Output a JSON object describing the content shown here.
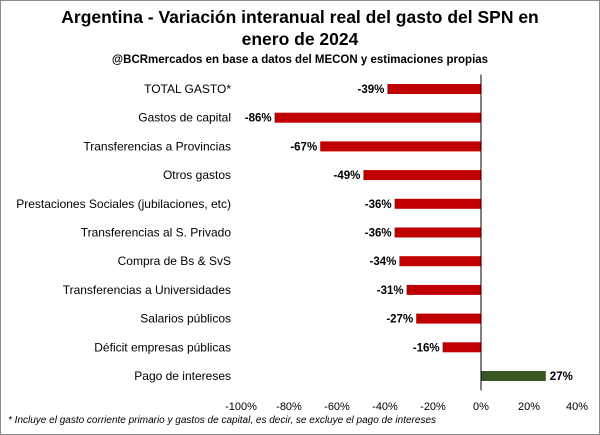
{
  "chart_data": {
    "type": "bar",
    "orientation": "horizontal",
    "title_line1": "Argentina - Variación interanual real del gasto del SPN en",
    "title_line2": "enero de 2024",
    "subtitle": "@BCRmercados en base a datos del MECON y estimaciones propias",
    "footnote": "* Incluye el gasto corriente primario y gastos de capital, es decir, se excluye el pago de intereses",
    "categories": [
      "TOTAL GASTO*",
      "Gastos de capital",
      "Transferencias a Provincias",
      "Otros gastos",
      "Prestaciones Sociales (jubilaciones, etc)",
      "Transferencias al S. Privado",
      "Compra de Bs & SvS",
      "Transferencias a Universidades",
      "Salarios públicos",
      "Déficit empresas públicas",
      "Pago de intereses"
    ],
    "values": [
      -39,
      -86,
      -67,
      -49,
      -36,
      -36,
      -34,
      -31,
      -27,
      -16,
      27
    ],
    "value_labels": [
      "-39%",
      "-86%",
      "-67%",
      "-49%",
      "-36%",
      "-36%",
      "-34%",
      "-31%",
      "-27%",
      "-16%",
      "27%"
    ],
    "xlim": [
      -100,
      40
    ],
    "xticks": [
      -100,
      -80,
      -60,
      -40,
      -20,
      0,
      20,
      40
    ],
    "xtick_labels": [
      "-100%",
      "-80%",
      "-60%",
      "-40%",
      "-20%",
      "0%",
      "20%",
      "40%"
    ],
    "grid": false,
    "legend": "none",
    "colors": {
      "negative": "#c00000",
      "positive": "#375623"
    }
  }
}
